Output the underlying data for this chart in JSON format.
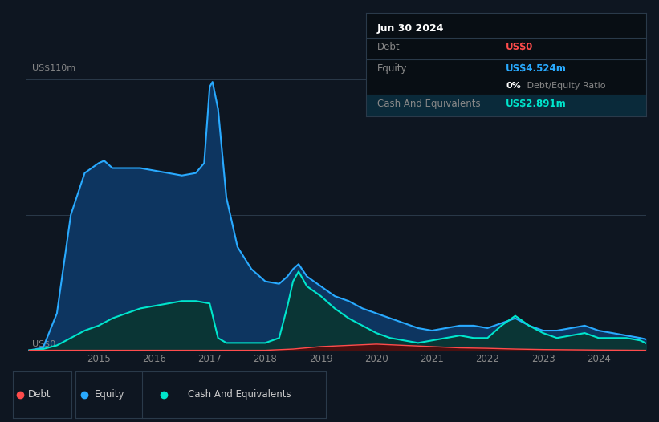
{
  "background_color": "#0e1621",
  "plot_bg_color": "#0e1621",
  "title_y_label": "US$110m",
  "zero_label": "US$0",
  "ylim": [
    0,
    120
  ],
  "xlim": [
    2013.7,
    2024.85
  ],
  "grid_color": "#1e2d3d",
  "info_box": {
    "date": "Jun 30 2024",
    "debt_label": "Debt",
    "debt_value": "US$0",
    "equity_label": "Equity",
    "equity_value": "US$4.524m",
    "ratio_text_bold": "0%",
    "ratio_text_normal": " Debt/Equity Ratio",
    "cash_label": "Cash And Equivalents",
    "cash_value": "US$2.891m",
    "debt_color": "#ff4c4c",
    "equity_color": "#29aaff",
    "cash_color": "#00e5cc",
    "ratio_bold_color": "#ffffff",
    "ratio_normal_color": "#888888",
    "box_bg": "#080e14",
    "box_border": "#2a3a4a",
    "label_color": "#888888",
    "title_color": "#ffffff"
  },
  "legend": {
    "debt_label": "Debt",
    "equity_label": "Equity",
    "cash_label": "Cash And Equivalents",
    "debt_color": "#ff4c4c",
    "equity_color": "#29aaff",
    "cash_color": "#00e5cc"
  },
  "equity_line_color": "#29aaff",
  "equity_fill_color": "#0d3560",
  "cash_line_color": "#00e5cc",
  "cash_fill_color": "#0a3535",
  "debt_line_color": "#ff4c4c",
  "debt_fill_color": "#4a1010",
  "equity_data": {
    "years": [
      2013.75,
      2014.0,
      2014.25,
      2014.5,
      2014.75,
      2015.0,
      2015.1,
      2015.25,
      2015.5,
      2015.75,
      2016.0,
      2016.25,
      2016.5,
      2016.75,
      2016.9,
      2017.0,
      2017.05,
      2017.15,
      2017.3,
      2017.5,
      2017.75,
      2018.0,
      2018.25,
      2018.4,
      2018.5,
      2018.6,
      2018.75,
      2019.0,
      2019.25,
      2019.5,
      2019.75,
      2020.0,
      2020.25,
      2020.5,
      2020.75,
      2021.0,
      2021.25,
      2021.5,
      2021.75,
      2022.0,
      2022.25,
      2022.5,
      2022.75,
      2023.0,
      2023.25,
      2023.5,
      2023.75,
      2024.0,
      2024.25,
      2024.5,
      2024.75,
      2024.85
    ],
    "values": [
      0,
      1,
      15,
      55,
      72,
      76,
      77,
      74,
      74,
      74,
      73,
      72,
      71,
      72,
      76,
      107,
      109,
      98,
      62,
      42,
      33,
      28,
      27,
      30,
      33,
      35,
      30,
      26,
      22,
      20,
      17,
      15,
      13,
      11,
      9,
      8,
      9,
      10,
      10,
      9,
      11,
      13,
      10,
      8,
      8,
      9,
      10,
      8,
      7,
      6,
      5,
      4.5
    ]
  },
  "cash_data": {
    "years": [
      2013.75,
      2014.0,
      2014.25,
      2014.5,
      2014.75,
      2015.0,
      2015.25,
      2015.5,
      2015.75,
      2016.0,
      2016.25,
      2016.5,
      2016.75,
      2017.0,
      2017.15,
      2017.3,
      2017.5,
      2017.75,
      2018.0,
      2018.25,
      2018.4,
      2018.5,
      2018.6,
      2018.75,
      2019.0,
      2019.25,
      2019.5,
      2019.75,
      2020.0,
      2020.25,
      2020.5,
      2020.75,
      2021.0,
      2021.25,
      2021.5,
      2021.75,
      2022.0,
      2022.25,
      2022.5,
      2022.75,
      2023.0,
      2023.25,
      2023.5,
      2023.75,
      2024.0,
      2024.25,
      2024.5,
      2024.75,
      2024.85
    ],
    "values": [
      0,
      0.5,
      2,
      5,
      8,
      10,
      13,
      15,
      17,
      18,
      19,
      20,
      20,
      19,
      5,
      3,
      3,
      3,
      3,
      5,
      18,
      28,
      32,
      26,
      22,
      17,
      13,
      10,
      7,
      5,
      4,
      3,
      4,
      5,
      6,
      5,
      5,
      10,
      14,
      10,
      7,
      5,
      6,
      7,
      5,
      5,
      5,
      4,
      2.9
    ]
  },
  "debt_data": {
    "years": [
      2013.75,
      2014.0,
      2014.5,
      2015.0,
      2015.5,
      2016.0,
      2016.5,
      2017.0,
      2017.5,
      2018.0,
      2018.5,
      2019.0,
      2019.5,
      2020.0,
      2020.5,
      2021.0,
      2021.5,
      2022.0,
      2022.5,
      2023.0,
      2023.5,
      2024.0,
      2024.5,
      2024.85
    ],
    "values": [
      0,
      0,
      0,
      0,
      0,
      0,
      0,
      0,
      0,
      0,
      0.5,
      1.5,
      2,
      2.5,
      2,
      1.5,
      1,
      0.8,
      0.5,
      0.3,
      0.2,
      0.1,
      0.05,
      0
    ]
  }
}
